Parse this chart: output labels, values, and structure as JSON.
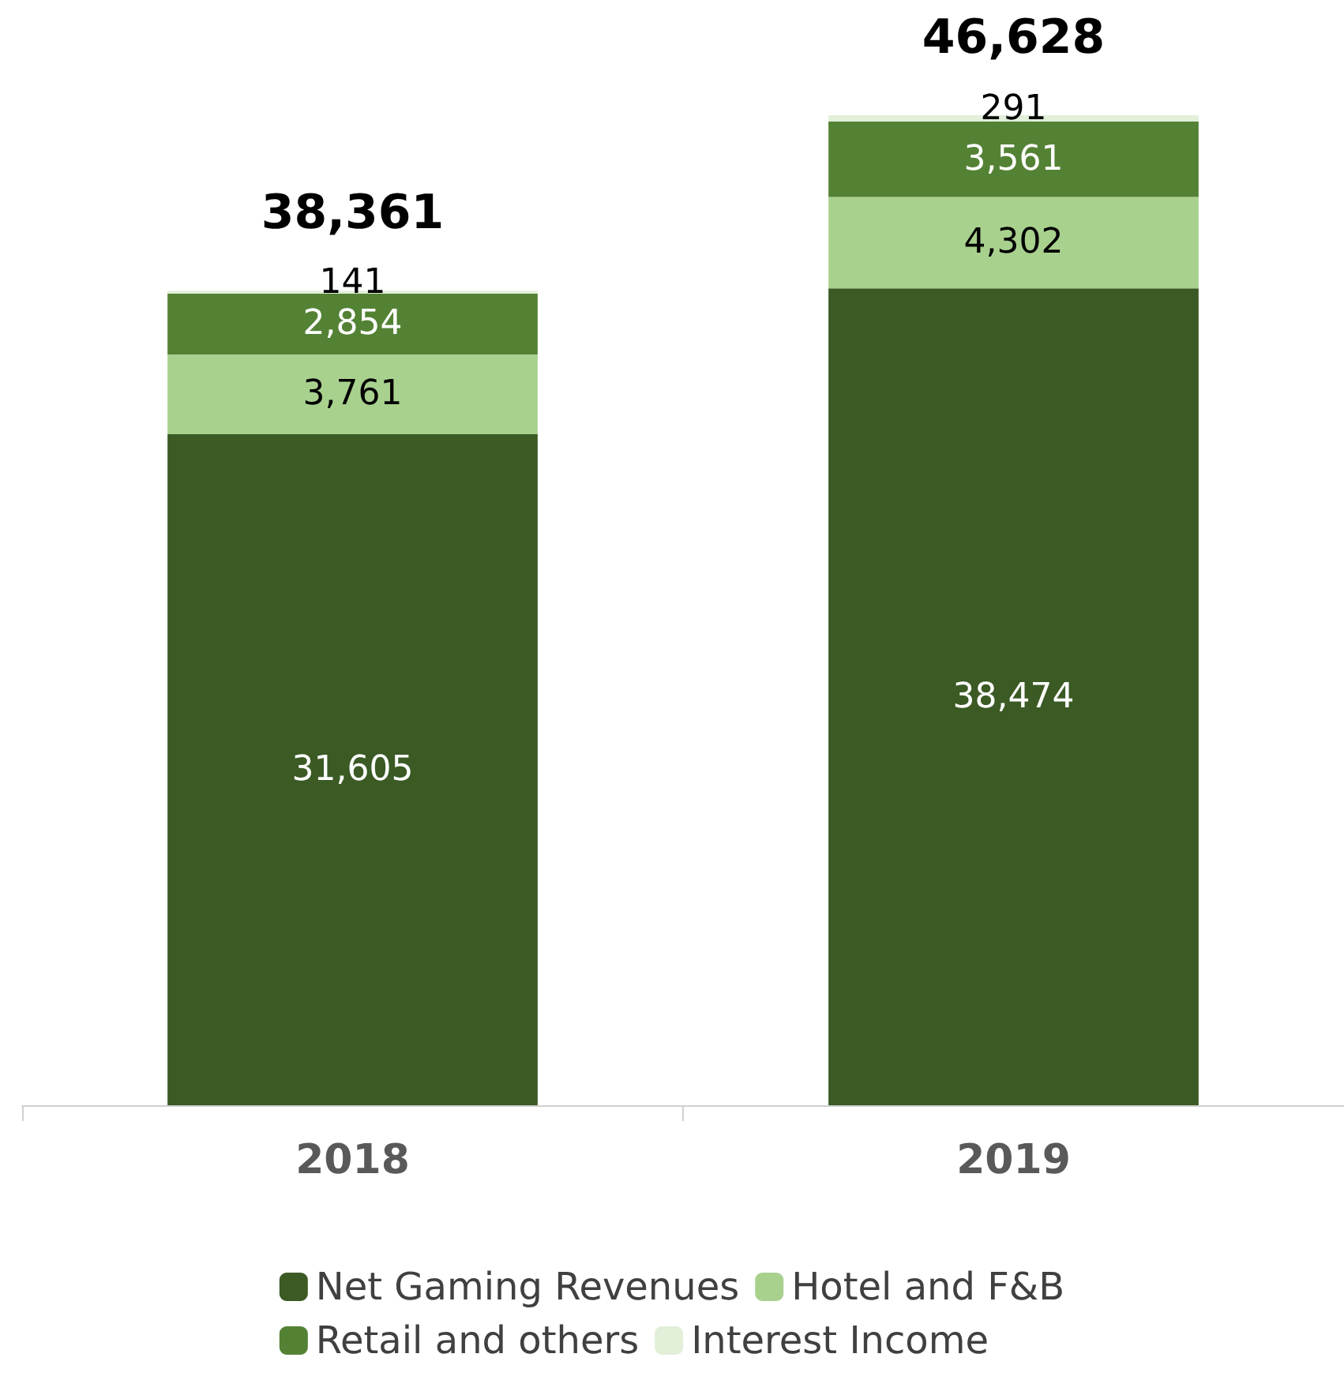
{
  "chart_data": {
    "type": "bar",
    "stacked": true,
    "categories": [
      "2018",
      "2019"
    ],
    "series": [
      {
        "name": "Net Gaming Revenues",
        "color": "#3b5a24",
        "values": [
          31605,
          38474
        ],
        "value_labels": [
          "31,605",
          "38,474"
        ]
      },
      {
        "name": "Hotel and F&B",
        "color": "#a9d18e",
        "values": [
          3761,
          4302
        ],
        "value_labels": [
          "3,761",
          "4,302"
        ]
      },
      {
        "name": "Retail and others",
        "color": "#548235",
        "values": [
          2854,
          3561
        ],
        "value_labels": [
          "2,854",
          "3,561"
        ]
      },
      {
        "name": "Interest Income",
        "color": "#e2efd9",
        "values": [
          141,
          291
        ],
        "value_labels": [
          "141",
          "291"
        ]
      }
    ],
    "totals": [
      "38,361",
      "46,628"
    ],
    "legend": "bottom"
  }
}
